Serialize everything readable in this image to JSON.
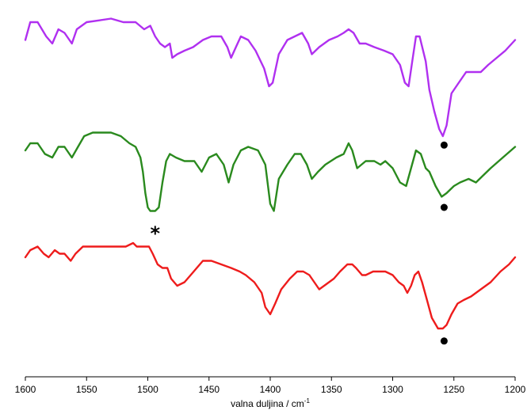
{
  "chart_data": {
    "type": "line",
    "xlabel": "valna duljina / cm",
    "xlabel_superscript": "-1",
    "xlim": [
      1600,
      1200
    ],
    "x_reversed": true,
    "y_axis_shown": false,
    "grid": false,
    "x_ticks": [
      {
        "value": 1600,
        "label": "1600"
      },
      {
        "value": 1550,
        "label": "1550"
      },
      {
        "value": 1500,
        "label": "1500"
      },
      {
        "value": 1450,
        "label": "1450"
      },
      {
        "value": 1400,
        "label": "1400"
      },
      {
        "value": 1350,
        "label": "1350"
      },
      {
        "value": 1300,
        "label": "1300"
      },
      {
        "value": 1250,
        "label": "1250"
      },
      {
        "value": 1200,
        "label": "1200"
      }
    ],
    "y_scale": "relative transmittance (top of plot = 100, bottom = 0)",
    "series": [
      {
        "color": "#b030f0",
        "points": [
          [
            1600,
            91
          ],
          [
            1596,
            96
          ],
          [
            1590,
            96
          ],
          [
            1583,
            92
          ],
          [
            1578,
            90
          ],
          [
            1573,
            94
          ],
          [
            1568,
            93
          ],
          [
            1562,
            90
          ],
          [
            1558,
            94
          ],
          [
            1550,
            96
          ],
          [
            1540,
            96.5
          ],
          [
            1530,
            97
          ],
          [
            1520,
            96
          ],
          [
            1510,
            96
          ],
          [
            1503,
            94
          ],
          [
            1498,
            95
          ],
          [
            1494,
            92
          ],
          [
            1490,
            90
          ],
          [
            1486,
            89
          ],
          [
            1482,
            90
          ],
          [
            1480,
            86
          ],
          [
            1476,
            87
          ],
          [
            1470,
            88
          ],
          [
            1463,
            89
          ],
          [
            1455,
            91
          ],
          [
            1448,
            92
          ],
          [
            1440,
            92
          ],
          [
            1435,
            89
          ],
          [
            1432,
            86
          ],
          [
            1428,
            89
          ],
          [
            1424,
            92
          ],
          [
            1418,
            91
          ],
          [
            1412,
            88
          ],
          [
            1405,
            83
          ],
          [
            1401,
            78
          ],
          [
            1398,
            79
          ],
          [
            1393,
            87
          ],
          [
            1386,
            91
          ],
          [
            1380,
            92
          ],
          [
            1374,
            93
          ],
          [
            1369,
            90
          ],
          [
            1366,
            87
          ],
          [
            1360,
            89
          ],
          [
            1352,
            91
          ],
          [
            1345,
            92
          ],
          [
            1340,
            93
          ],
          [
            1336,
            94
          ],
          [
            1332,
            93
          ],
          [
            1327,
            90
          ],
          [
            1322,
            90
          ],
          [
            1315,
            89
          ],
          [
            1307,
            88
          ],
          [
            1300,
            87
          ],
          [
            1294,
            84
          ],
          [
            1290,
            79
          ],
          [
            1287,
            78
          ],
          [
            1284,
            85
          ],
          [
            1281,
            92
          ],
          [
            1278,
            92
          ],
          [
            1273,
            85
          ],
          [
            1270,
            77
          ],
          [
            1266,
            71
          ],
          [
            1262,
            66
          ],
          [
            1259,
            64
          ],
          [
            1256,
            67
          ],
          [
            1252,
            76
          ],
          [
            1246,
            79
          ],
          [
            1240,
            82
          ],
          [
            1234,
            82
          ],
          [
            1228,
            82
          ],
          [
            1222,
            84
          ],
          [
            1215,
            86
          ],
          [
            1208,
            88
          ],
          [
            1200,
            91
          ]
        ]
      },
      {
        "color": "#2a8a1e",
        "points": [
          [
            1600,
            60
          ],
          [
            1596,
            62
          ],
          [
            1590,
            62
          ],
          [
            1584,
            59
          ],
          [
            1578,
            58
          ],
          [
            1573,
            61
          ],
          [
            1568,
            61
          ],
          [
            1562,
            58
          ],
          [
            1557,
            61
          ],
          [
            1552,
            64
          ],
          [
            1545,
            65
          ],
          [
            1538,
            65
          ],
          [
            1530,
            65
          ],
          [
            1522,
            64
          ],
          [
            1515,
            62
          ],
          [
            1510,
            61
          ],
          [
            1506,
            58
          ],
          [
            1504,
            54
          ],
          [
            1502,
            48
          ],
          [
            1500,
            44
          ],
          [
            1498,
            43
          ],
          [
            1494,
            43
          ],
          [
            1491,
            44
          ],
          [
            1488,
            51
          ],
          [
            1485,
            57
          ],
          [
            1482,
            59
          ],
          [
            1477,
            58
          ],
          [
            1470,
            57
          ],
          [
            1462,
            57
          ],
          [
            1456,
            54
          ],
          [
            1450,
            58
          ],
          [
            1444,
            59
          ],
          [
            1438,
            56
          ],
          [
            1434,
            51
          ],
          [
            1430,
            56
          ],
          [
            1424,
            60
          ],
          [
            1418,
            61
          ],
          [
            1410,
            60
          ],
          [
            1404,
            56
          ],
          [
            1400,
            45
          ],
          [
            1397,
            43
          ],
          [
            1393,
            52
          ],
          [
            1386,
            56
          ],
          [
            1380,
            59
          ],
          [
            1375,
            59
          ],
          [
            1370,
            56
          ],
          [
            1366,
            52
          ],
          [
            1361,
            54
          ],
          [
            1355,
            56
          ],
          [
            1346,
            58
          ],
          [
            1340,
            59
          ],
          [
            1336,
            62
          ],
          [
            1333,
            60
          ],
          [
            1329,
            55
          ],
          [
            1322,
            57
          ],
          [
            1315,
            57
          ],
          [
            1310,
            56
          ],
          [
            1306,
            57
          ],
          [
            1300,
            55
          ],
          [
            1294,
            51
          ],
          [
            1289,
            50
          ],
          [
            1285,
            55
          ],
          [
            1281,
            60
          ],
          [
            1277,
            59
          ],
          [
            1273,
            55
          ],
          [
            1270,
            54
          ],
          [
            1265,
            50
          ],
          [
            1260,
            47
          ],
          [
            1256,
            48
          ],
          [
            1250,
            50
          ],
          [
            1245,
            51
          ],
          [
            1238,
            52
          ],
          [
            1232,
            51
          ],
          [
            1226,
            53
          ],
          [
            1220,
            55
          ],
          [
            1210,
            58
          ],
          [
            1200,
            61
          ]
        ]
      },
      {
        "color": "#ee1c1c",
        "points": [
          [
            1600,
            30
          ],
          [
            1596,
            32
          ],
          [
            1590,
            33
          ],
          [
            1585,
            31
          ],
          [
            1581,
            30
          ],
          [
            1576,
            32
          ],
          [
            1572,
            31
          ],
          [
            1568,
            31
          ],
          [
            1563,
            29
          ],
          [
            1559,
            31
          ],
          [
            1553,
            33
          ],
          [
            1546,
            33
          ],
          [
            1540,
            33
          ],
          [
            1532,
            33
          ],
          [
            1525,
            33
          ],
          [
            1518,
            33
          ],
          [
            1512,
            34
          ],
          [
            1509,
            33
          ],
          [
            1504,
            33
          ],
          [
            1499,
            33
          ],
          [
            1496,
            31
          ],
          [
            1492,
            28
          ],
          [
            1488,
            27
          ],
          [
            1484,
            27
          ],
          [
            1481,
            24
          ],
          [
            1476,
            22
          ],
          [
            1470,
            23
          ],
          [
            1465,
            25
          ],
          [
            1460,
            27
          ],
          [
            1455,
            29
          ],
          [
            1448,
            29
          ],
          [
            1440,
            28
          ],
          [
            1432,
            27
          ],
          [
            1425,
            26
          ],
          [
            1420,
            25
          ],
          [
            1413,
            23
          ],
          [
            1407,
            20
          ],
          [
            1404,
            16
          ],
          [
            1400,
            14
          ],
          [
            1396,
            17
          ],
          [
            1391,
            21
          ],
          [
            1384,
            24
          ],
          [
            1378,
            26
          ],
          [
            1373,
            26
          ],
          [
            1368,
            25
          ],
          [
            1364,
            23
          ],
          [
            1360,
            21
          ],
          [
            1356,
            22
          ],
          [
            1348,
            24
          ],
          [
            1343,
            26
          ],
          [
            1337,
            28
          ],
          [
            1333,
            28
          ],
          [
            1330,
            27
          ],
          [
            1325,
            25
          ],
          [
            1322,
            25
          ],
          [
            1316,
            26
          ],
          [
            1311,
            26
          ],
          [
            1306,
            26
          ],
          [
            1300,
            25
          ],
          [
            1295,
            23
          ],
          [
            1291,
            22
          ],
          [
            1288,
            20
          ],
          [
            1285,
            22
          ],
          [
            1282,
            25
          ],
          [
            1279,
            26
          ],
          [
            1276,
            23
          ],
          [
            1272,
            18
          ],
          [
            1268,
            13
          ],
          [
            1263,
            10
          ],
          [
            1259,
            10
          ],
          [
            1256,
            11
          ],
          [
            1252,
            14
          ],
          [
            1247,
            17
          ],
          [
            1242,
            18
          ],
          [
            1236,
            19
          ],
          [
            1228,
            21
          ],
          [
            1220,
            23
          ],
          [
            1212,
            26
          ],
          [
            1205,
            28
          ],
          [
            1200,
            30
          ]
        ]
      }
    ],
    "annotations": [
      {
        "type": "dot",
        "x": 1258,
        "y": 61.5,
        "color": "#000000"
      },
      {
        "type": "dot",
        "x": 1258,
        "y": 44,
        "color": "#000000"
      },
      {
        "type": "dot",
        "x": 1258,
        "y": 6.5,
        "color": "#000000"
      },
      {
        "type": "text",
        "text": "*",
        "x": 1494,
        "y": 38.5,
        "color": "#000000"
      }
    ]
  }
}
